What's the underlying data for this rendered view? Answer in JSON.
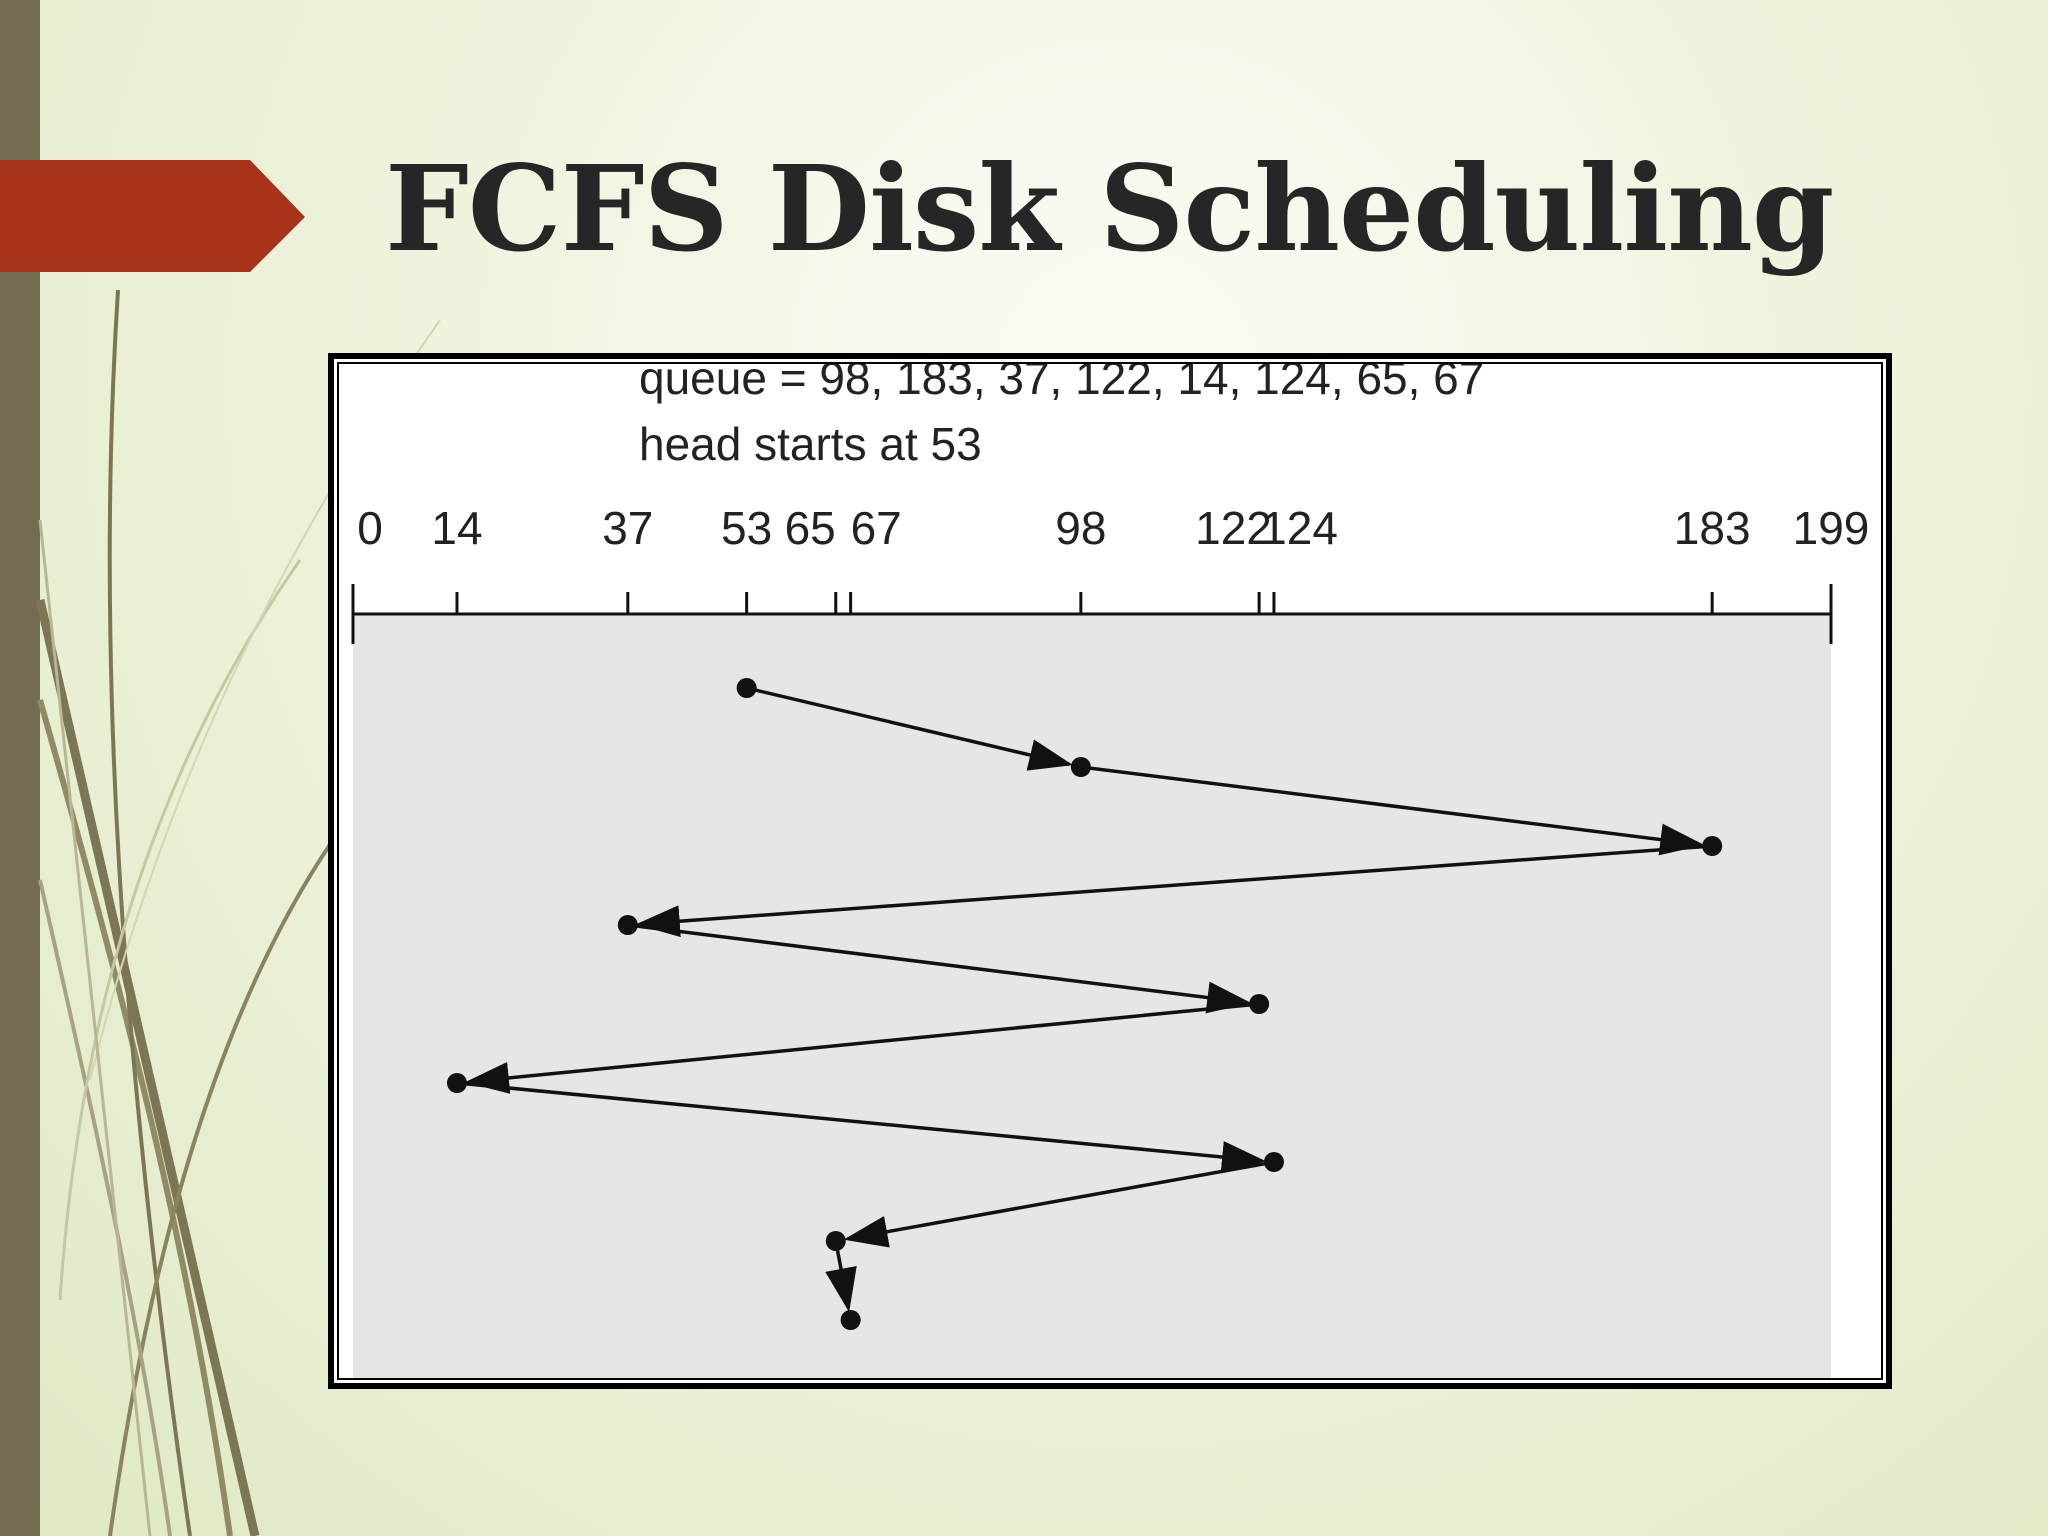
{
  "slide": {
    "title": "FCFS Disk Scheduling",
    "colors": {
      "accent_arrow": "#a8321a",
      "side_bar": "#726d51",
      "background": "#eef3dc"
    }
  },
  "chart_data": {
    "type": "line",
    "annotation_lines": [
      "queue = 98, 183, 37, 122, 14, 124, 65, 67",
      "head starts at 53"
    ],
    "x_ticks": [
      0,
      14,
      37,
      53,
      65,
      67,
      98,
      122,
      124,
      183,
      199
    ],
    "xlim": [
      0,
      199
    ],
    "head_start": 53,
    "queue": [
      98,
      183,
      37,
      122,
      14,
      124,
      65,
      67
    ],
    "path": [
      53,
      98,
      183,
      37,
      122,
      14,
      124,
      65,
      67
    ],
    "colors": {
      "plot_area": "#e6e6e6",
      "line": "#111111"
    }
  }
}
